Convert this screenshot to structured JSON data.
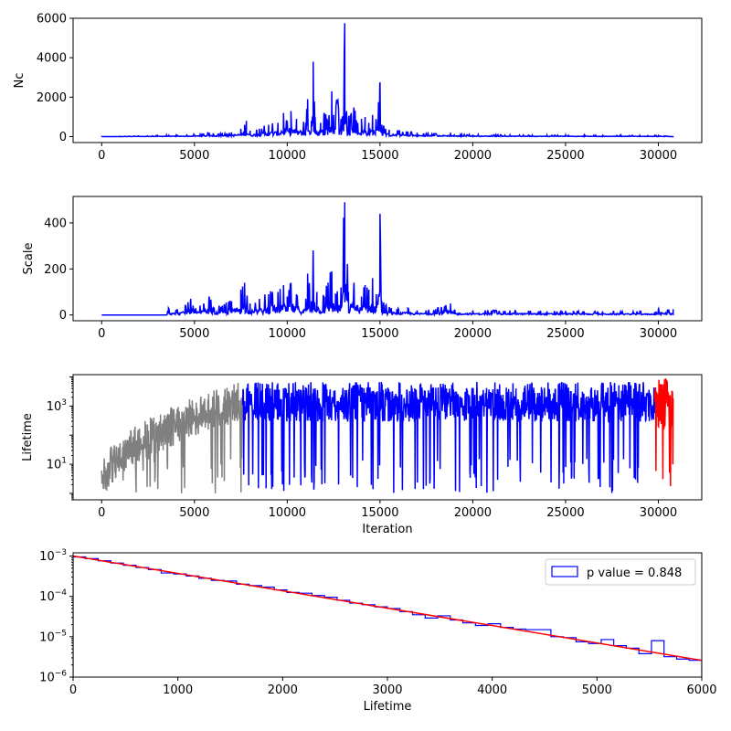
{
  "chart_data": [
    {
      "type": "line",
      "title": "",
      "xlabel": "",
      "ylabel": "Nc",
      "xlim": [
        -1540,
        32340
      ],
      "ylim": [
        -300,
        6000
      ],
      "xticks": [
        0,
        5000,
        10000,
        15000,
        20000,
        25000,
        30000
      ],
      "yticks": [
        0,
        2000,
        4000,
        6000
      ],
      "grid": false,
      "series": [
        {
          "color": "#0000ff",
          "x": [
            0,
            1000,
            2000,
            3000,
            3500,
            4000,
            5000,
            5500,
            5800,
            6000,
            6500,
            7000,
            7500,
            7700,
            7800,
            8000,
            8500,
            9000,
            9500,
            9800,
            10000,
            10200,
            10500,
            11000,
            11100,
            11300,
            11400,
            11500,
            11800,
            12000,
            12200,
            12400,
            12500,
            12700,
            12900,
            13000,
            13100,
            13200,
            13400,
            13600,
            13800,
            14000,
            14200,
            14400,
            14600,
            14800,
            15000,
            15100,
            15300,
            15500,
            16000,
            16500,
            17000,
            17500,
            18000,
            18800,
            19000,
            20000,
            21000,
            22000,
            23000,
            24000,
            25000,
            26000,
            27000,
            28000,
            29000,
            29800,
            30000,
            30800
          ],
          "values": [
            5,
            15,
            30,
            50,
            80,
            60,
            100,
            150,
            200,
            120,
            150,
            220,
            400,
            600,
            800,
            300,
            400,
            600,
            700,
            1200,
            800,
            1300,
            900,
            700,
            1900,
            800,
            3800,
            1000,
            700,
            1200,
            800,
            2300,
            1100,
            1800,
            900,
            1000,
            5750,
            1300,
            1100,
            1400,
            700,
            900,
            1000,
            700,
            1100,
            800,
            2750,
            600,
            400,
            350,
            300,
            250,
            200,
            150,
            150,
            200,
            120,
            100,
            90,
            80,
            80,
            70,
            80,
            70,
            60,
            60,
            60,
            50,
            50,
            10
          ]
        }
      ]
    },
    {
      "type": "line",
      "title": "",
      "xlabel": "",
      "ylabel": "Scale",
      "xlim": [
        -1540,
        32340
      ],
      "ylim": [
        -25,
        515
      ],
      "xticks": [
        0,
        5000,
        10000,
        15000,
        20000,
        25000,
        30000
      ],
      "yticks": [
        0,
        200,
        400
      ],
      "grid": false,
      "series": [
        {
          "color": "#0000ff",
          "x": [
            0,
            3500,
            3600,
            4000,
            4500,
            4800,
            5000,
            5500,
            5800,
            6000,
            6500,
            7000,
            7500,
            7700,
            8000,
            8500,
            9000,
            9500,
            9800,
            10000,
            10200,
            10500,
            11000,
            11100,
            11300,
            11400,
            11600,
            12000,
            12200,
            12400,
            12600,
            12900,
            13100,
            13300,
            13600,
            14000,
            14200,
            14400,
            14600,
            14800,
            15000,
            15100,
            15300,
            15600,
            16000,
            16500,
            17000,
            18000,
            18800,
            19000,
            20000,
            21000,
            22000,
            23000,
            24000,
            25000,
            26000,
            27000,
            28000,
            29000,
            29800,
            30000,
            30800
          ],
          "values": [
            0,
            0,
            30,
            20,
            40,
            70,
            25,
            50,
            80,
            30,
            40,
            60,
            110,
            140,
            50,
            70,
            90,
            100,
            130,
            80,
            140,
            90,
            70,
            180,
            60,
            270,
            100,
            80,
            140,
            190,
            90,
            120,
            490,
            100,
            140,
            80,
            130,
            110,
            160,
            90,
            440,
            60,
            40,
            30,
            25,
            30,
            20,
            25,
            50,
            20,
            20,
            18,
            20,
            18,
            16,
            18,
            16,
            16,
            15,
            15,
            12,
            25,
            25
          ]
        }
      ]
    },
    {
      "type": "line",
      "title": "",
      "xlabel": "Iteration",
      "ylabel": "Lifetime",
      "yscale": "log",
      "xlim": [
        -1540,
        32340
      ],
      "ylim": [
        0.6,
        12000
      ],
      "xticks": [
        0,
        5000,
        10000,
        15000,
        20000,
        25000,
        30000
      ],
      "yticks_major": [
        10,
        1000
      ],
      "ytick_labels": [
        "10^1",
        "10^3"
      ],
      "grid": false,
      "series": [
        {
          "color": "#808080",
          "range": [
            0,
            7600
          ],
          "envelope": "upper bound rises from ~5 at x=0 to ~5000 at x=7600; dense oscillation down to ~1-10"
        },
        {
          "color": "#0000ff",
          "range": [
            7600,
            29800
          ],
          "envelope": "dense oscillation between ~1 and ~6000, mostly between 30 and 5000"
        },
        {
          "color": "#ff0000",
          "range": [
            29800,
            30800
          ],
          "envelope": "dense oscillation between ~30 and ~8000"
        }
      ]
    },
    {
      "type": "step",
      "title": "",
      "xlabel": "Lifetime",
      "ylabel": "",
      "yscale": "log",
      "xlim": [
        0,
        6000
      ],
      "ylim": [
        1e-06,
        0.0012
      ],
      "xticks": [
        0,
        1000,
        2000,
        3000,
        4000,
        5000,
        6000
      ],
      "yticks_major": [
        1e-06,
        1e-05,
        0.0001,
        0.001
      ],
      "ytick_labels": [
        "10^-6",
        "10^-5",
        "10^-4",
        "10^-3"
      ],
      "grid": false,
      "legend": {
        "placement": "upper right",
        "label": "p value = 0.848"
      },
      "histogram": {
        "color": "#0000ff",
        "bin_edges": [
          0,
          120,
          240,
          360,
          480,
          600,
          720,
          840,
          960,
          1080,
          1200,
          1320,
          1440,
          1560,
          1680,
          1800,
          1920,
          2040,
          2160,
          2280,
          2400,
          2520,
          2640,
          2760,
          2880,
          3000,
          3120,
          3240,
          3360,
          3480,
          3600,
          3720,
          3840,
          3960,
          4080,
          4200,
          4320,
          4440,
          4560,
          4680,
          4800,
          4920,
          5040,
          5160,
          5280,
          5400,
          5520,
          5640,
          5760,
          5880,
          6000
        ],
        "values": [
          0.00095,
          0.00086,
          0.00076,
          0.00067,
          0.00059,
          0.00052,
          0.00046,
          0.00038,
          0.00036,
          0.00032,
          0.00028,
          0.00025,
          0.00024,
          0.0002,
          0.000185,
          0.00017,
          0.000145,
          0.000125,
          0.00012,
          0.000105,
          9.5e-05,
          8e-05,
          6.8e-05,
          6.2e-05,
          5.5e-05,
          5e-05,
          4.2e-05,
          3.5e-05,
          2.9e-05,
          3.3e-05,
          2.6e-05,
          2.2e-05,
          1.9e-05,
          2.1e-05,
          1.7e-05,
          1.55e-05,
          1.5e-05,
          1.5e-05,
          1e-05,
          9.5e-06,
          7.5e-06,
          6.8e-06,
          8.5e-06,
          6e-06,
          5.2e-06,
          3.8e-06,
          8e-06,
          3.2e-06,
          2.8e-06,
          2.6e-06
        ]
      },
      "fit_line": {
        "color": "#ff0000",
        "x": [
          0,
          6000
        ],
        "y": [
          0.001,
          2.6e-06
        ]
      }
    }
  ]
}
